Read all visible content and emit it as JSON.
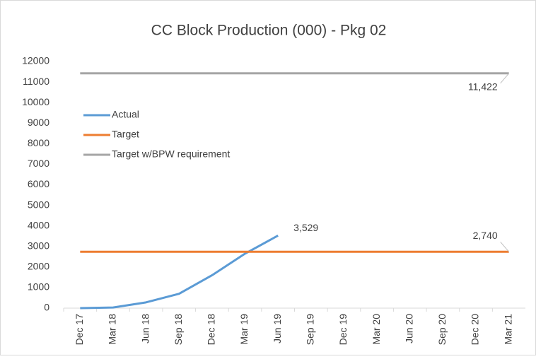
{
  "chart_data": {
    "type": "line",
    "title": "CC Block Production (000) - Pkg 02",
    "categories": [
      "Dec 17",
      "Mar 18",
      "Jun 18",
      "Sep 18",
      "Dec 18",
      "Mar 19",
      "Jun 19",
      "Sep 19",
      "Dec 19",
      "Mar 20",
      "Jun 20",
      "Sep 20",
      "Dec 20",
      "Mar 21"
    ],
    "series": [
      {
        "name": "Actual",
        "color": "#5b9bd5",
        "values": [
          0,
          30,
          280,
          700,
          1600,
          2650,
          3529,
          null,
          null,
          null,
          null,
          null,
          null,
          null
        ],
        "value_labels": [
          null,
          null,
          null,
          null,
          null,
          null,
          "3,529",
          null,
          null,
          null,
          null,
          null,
          null,
          null
        ]
      },
      {
        "name": "Target",
        "color": "#ed7d31",
        "values": [
          2740,
          2740,
          2740,
          2740,
          2740,
          2740,
          2740,
          2740,
          2740,
          2740,
          2740,
          2740,
          2740,
          2740
        ],
        "value_labels": [
          null,
          null,
          null,
          null,
          null,
          null,
          null,
          null,
          null,
          null,
          null,
          null,
          null,
          "2,740"
        ]
      },
      {
        "name": "Target w/BPW requirement",
        "color": "#a5a5a5",
        "values": [
          11422,
          11422,
          11422,
          11422,
          11422,
          11422,
          11422,
          11422,
          11422,
          11422,
          11422,
          11422,
          11422,
          11422
        ],
        "value_labels": [
          null,
          null,
          null,
          null,
          null,
          null,
          null,
          null,
          null,
          null,
          null,
          null,
          null,
          "11,422"
        ]
      }
    ],
    "ylim": [
      0,
      12000
    ],
    "yticks": [
      0,
      1000,
      2000,
      3000,
      4000,
      5000,
      6000,
      7000,
      8000,
      9000,
      10000,
      11000,
      12000
    ],
    "grid": false,
    "legend": "upper left"
  }
}
